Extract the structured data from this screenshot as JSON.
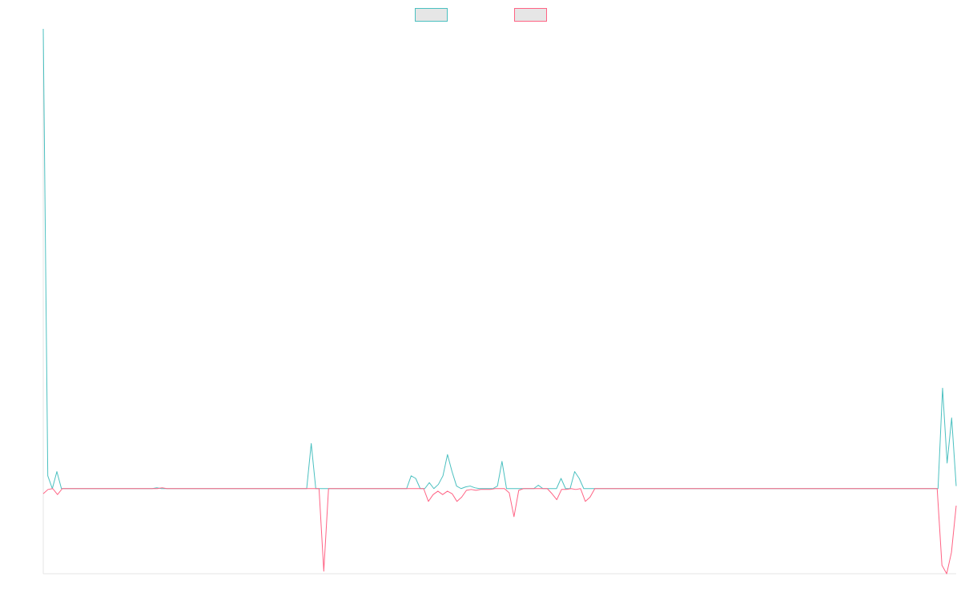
{
  "chart_data": {
    "type": "line",
    "title": "",
    "xlabel": "",
    "ylabel": "",
    "grid": false,
    "legend_placement": "top-center",
    "ylim": [
      -1.0,
      5.4
    ],
    "series": [
      {
        "color": "#4bc0c0",
        "values": [
          5.4,
          0.15,
          0.0,
          0.2,
          0.0,
          0.0,
          0.0,
          0.0,
          0.0,
          0.0,
          0.0,
          0.0,
          0.0,
          0.0,
          0.0,
          0.0,
          0.0,
          0.0,
          0.0,
          0.0,
          0.0,
          0.0,
          0.0,
          0.0,
          0.0,
          0.01,
          0.0,
          0.0,
          0.0,
          0.0,
          0.0,
          0.0,
          0.0,
          0.0,
          0.0,
          0.0,
          0.0,
          0.0,
          0.0,
          0.0,
          0.0,
          0.0,
          0.0,
          0.0,
          0.0,
          0.0,
          0.0,
          0.0,
          0.0,
          0.0,
          0.0,
          0.0,
          0.0,
          0.0,
          0.0,
          0.0,
          0.0,
          0.0,
          0.0,
          0.53,
          0.0,
          0.0,
          0.0,
          0.0,
          0.0,
          0.0,
          0.0,
          0.0,
          0.0,
          0.0,
          0.0,
          0.0,
          0.0,
          0.0,
          0.0,
          0.0,
          0.0,
          0.0,
          0.0,
          0.0,
          0.0,
          0.15,
          0.12,
          0.0,
          0.0,
          0.07,
          0.0,
          0.05,
          0.15,
          0.4,
          0.2,
          0.03,
          0.0,
          0.02,
          0.03,
          0.01,
          0.0,
          0.0,
          0.0,
          0.0,
          0.03,
          0.32,
          0.0,
          0.0,
          0.0,
          0.0,
          0.0,
          0.0,
          0.0,
          0.04,
          0.0,
          0.0,
          0.0,
          0.0,
          0.12,
          0.0,
          0.0,
          0.2,
          0.12,
          0.0,
          0.0,
          0.0,
          0.0,
          0.0,
          0.0,
          0.0,
          0.0,
          0.0,
          0.0,
          0.0,
          0.0,
          0.0,
          0.0,
          0.0,
          0.0,
          0.0,
          0.0,
          0.0,
          0.0,
          0.0,
          0.0,
          0.0,
          0.0,
          0.0,
          0.0,
          0.0,
          0.0,
          0.0,
          0.0,
          0.0,
          0.0,
          0.0,
          0.0,
          0.0,
          0.0,
          0.0,
          0.0,
          0.0,
          0.0,
          0.0,
          0.0,
          0.0,
          0.0,
          0.0,
          0.0,
          0.0,
          0.0,
          0.0,
          0.0,
          0.0,
          0.0,
          0.0,
          0.0,
          0.0,
          0.0,
          0.0,
          0.0,
          0.0,
          0.0,
          0.0,
          0.0,
          0.0,
          0.0,
          0.0,
          0.0,
          0.0,
          0.0,
          0.0,
          0.0,
          0.0,
          0.0,
          0.0,
          0.0,
          0.0,
          0.0,
          0.0,
          0.0,
          0.0,
          1.18,
          0.3,
          0.83,
          0.03
        ]
      },
      {
        "color": "#ff6384",
        "values": [
          -0.06,
          -0.01,
          0.0,
          -0.07,
          0.0,
          0.0,
          0.0,
          0.0,
          0.0,
          0.0,
          0.0,
          0.0,
          0.0,
          0.0,
          0.0,
          0.0,
          0.0,
          0.0,
          0.0,
          0.0,
          0.0,
          0.0,
          0.0,
          0.0,
          0.0,
          0.01,
          0.0,
          0.0,
          0.0,
          0.0,
          0.0,
          0.0,
          0.0,
          0.0,
          0.0,
          0.0,
          0.0,
          0.0,
          0.0,
          0.0,
          0.0,
          0.0,
          0.0,
          0.0,
          0.0,
          0.0,
          0.0,
          0.0,
          0.0,
          0.0,
          0.0,
          0.0,
          0.0,
          0.0,
          0.0,
          0.0,
          0.0,
          0.0,
          0.0,
          -0.97,
          0.0,
          0.0,
          0.0,
          0.0,
          0.0,
          0.0,
          0.0,
          0.0,
          0.0,
          0.0,
          0.0,
          0.0,
          0.0,
          0.0,
          0.0,
          0.0,
          0.0,
          0.0,
          0.0,
          0.0,
          0.0,
          -0.15,
          -0.07,
          -0.03,
          -0.07,
          -0.03,
          -0.06,
          -0.15,
          -0.1,
          -0.02,
          -0.01,
          -0.02,
          -0.01,
          -0.01,
          -0.01,
          0.0,
          0.0,
          0.0,
          -0.05,
          -0.33,
          -0.02,
          0.0,
          0.0,
          0.0,
          0.0,
          0.0,
          0.0,
          -0.06,
          -0.13,
          -0.01,
          -0.01,
          0.0,
          -0.01,
          0.0,
          -0.15,
          -0.1,
          0.0,
          0.0,
          0.0,
          0.0,
          0.0,
          0.0,
          0.0,
          0.0,
          0.0,
          0.0,
          0.0,
          0.0,
          0.0,
          0.0,
          0.0,
          0.0,
          0.0,
          0.0,
          0.0,
          0.0,
          0.0,
          0.0,
          0.0,
          0.0,
          0.0,
          0.0,
          0.0,
          0.0,
          0.0,
          0.0,
          0.0,
          0.0,
          0.0,
          0.0,
          0.0,
          0.0,
          0.0,
          0.0,
          0.0,
          0.0,
          0.0,
          0.0,
          0.0,
          0.0,
          0.0,
          0.0,
          0.0,
          0.0,
          0.0,
          0.0,
          0.0,
          0.0,
          0.0,
          0.0,
          0.0,
          0.0,
          0.0,
          0.0,
          0.0,
          0.0,
          0.0,
          0.0,
          0.0,
          0.0,
          0.0,
          0.0,
          0.0,
          0.0,
          0.0,
          0.0,
          0.0,
          0.0,
          0.0,
          -0.9,
          -1.0,
          -0.75,
          -0.2
        ]
      }
    ]
  }
}
